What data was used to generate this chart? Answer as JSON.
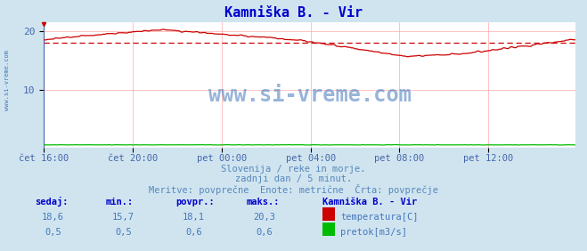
{
  "title": "Kamniška B. - Vir",
  "title_color": "#0000cc",
  "bg_color": "#d0e4f0",
  "plot_bg_color": "#ffffff",
  "grid_color": "#ffaaaa",
  "xlabel_color": "#4466aa",
  "text_color": "#5588bb",
  "n_points": 288,
  "x_tick_labels": [
    "čet 16:00",
    "čet 20:00",
    "pet 00:00",
    "pet 04:00",
    "pet 08:00",
    "pet 12:00"
  ],
  "x_tick_positions": [
    0,
    48,
    96,
    144,
    192,
    240
  ],
  "temp_avg": 18.1,
  "temp_min": 15.7,
  "temp_max": 20.3,
  "temp_current": 18.6,
  "flow_avg": 0.6,
  "flow_min": 0.5,
  "flow_max": 0.6,
  "flow_current": 0.5,
  "y_min": 0,
  "y_max": 21.5,
  "y_ticks": [
    10,
    20
  ],
  "avg_line_color": "#cc0000",
  "temp_line_color": "#cc0000",
  "flow_line_color": "#00bb00",
  "watermark": "www.si-vreme.com",
  "watermark_color": "#4477bb",
  "subtitle1": "Slovenija / reke in morje.",
  "subtitle2": "zadnji dan / 5 minut.",
  "subtitle3": "Meritve: povprečne  Enote: metrične  Črta: povprečje",
  "label_sedaj": "sedaj:",
  "label_min": "min.:",
  "label_povpr": "povpr.:",
  "label_maks": "maks.:",
  "label_station": "Kamniška B. - Vir",
  "label_temp": "temperatura[C]",
  "label_flow": "pretok[m3/s]",
  "sidebar_text": "www.si-vreme.com",
  "temp_vals": [
    "18,6",
    "15,7",
    "18,1",
    "20,3"
  ],
  "flow_vals": [
    "0,5",
    "0,5",
    "0,6",
    "0,6"
  ],
  "header_color": "#0000cc",
  "val_color": "#4477bb",
  "temp_box_color": "#cc0000",
  "flow_box_color": "#00bb00"
}
